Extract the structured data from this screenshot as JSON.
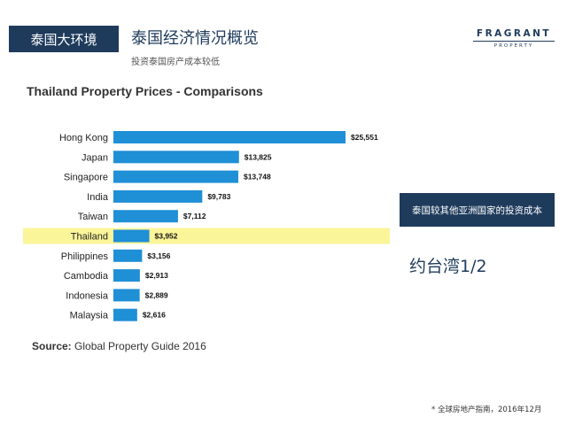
{
  "header": {
    "section_tag": "泰国大环境",
    "title": "泰国经济情况概览",
    "subtitle": "投资泰国房产成本较低",
    "logo_main": "FRAGRANT",
    "logo_sub": "PROPERTY"
  },
  "chart_data": {
    "type": "bar",
    "orientation": "horizontal",
    "title": "Thailand Property Prices - Comparisons",
    "categories": [
      "Hong Kong",
      "Japan",
      "Singapore",
      "India",
      "Taiwan",
      "Thailand",
      "Philippines",
      "Cambodia",
      "Indonesia",
      "Malaysia"
    ],
    "values": [
      25551,
      13825,
      13748,
      9783,
      7112,
      3952,
      3156,
      2913,
      2889,
      2616
    ],
    "value_labels": [
      "$25,551",
      "$13,825",
      "$13,748",
      "$9,783",
      "$7,112",
      "$3,952",
      "$3,156",
      "$2,913",
      "$2,889",
      "$2,616"
    ],
    "highlight": "Thailand",
    "bar_color": "#1f8fd6",
    "highlight_color": "#fbf59a",
    "source_prefix": "Source:",
    "source_text": " Global Property Guide 2016"
  },
  "callout": {
    "box_text": "泰国较其他亚洲国家的投资成本",
    "text": "约台湾1/2"
  },
  "footnote": "* 全球房地产指南，2016年12月",
  "colors": {
    "navy": "#1f3b5c"
  }
}
